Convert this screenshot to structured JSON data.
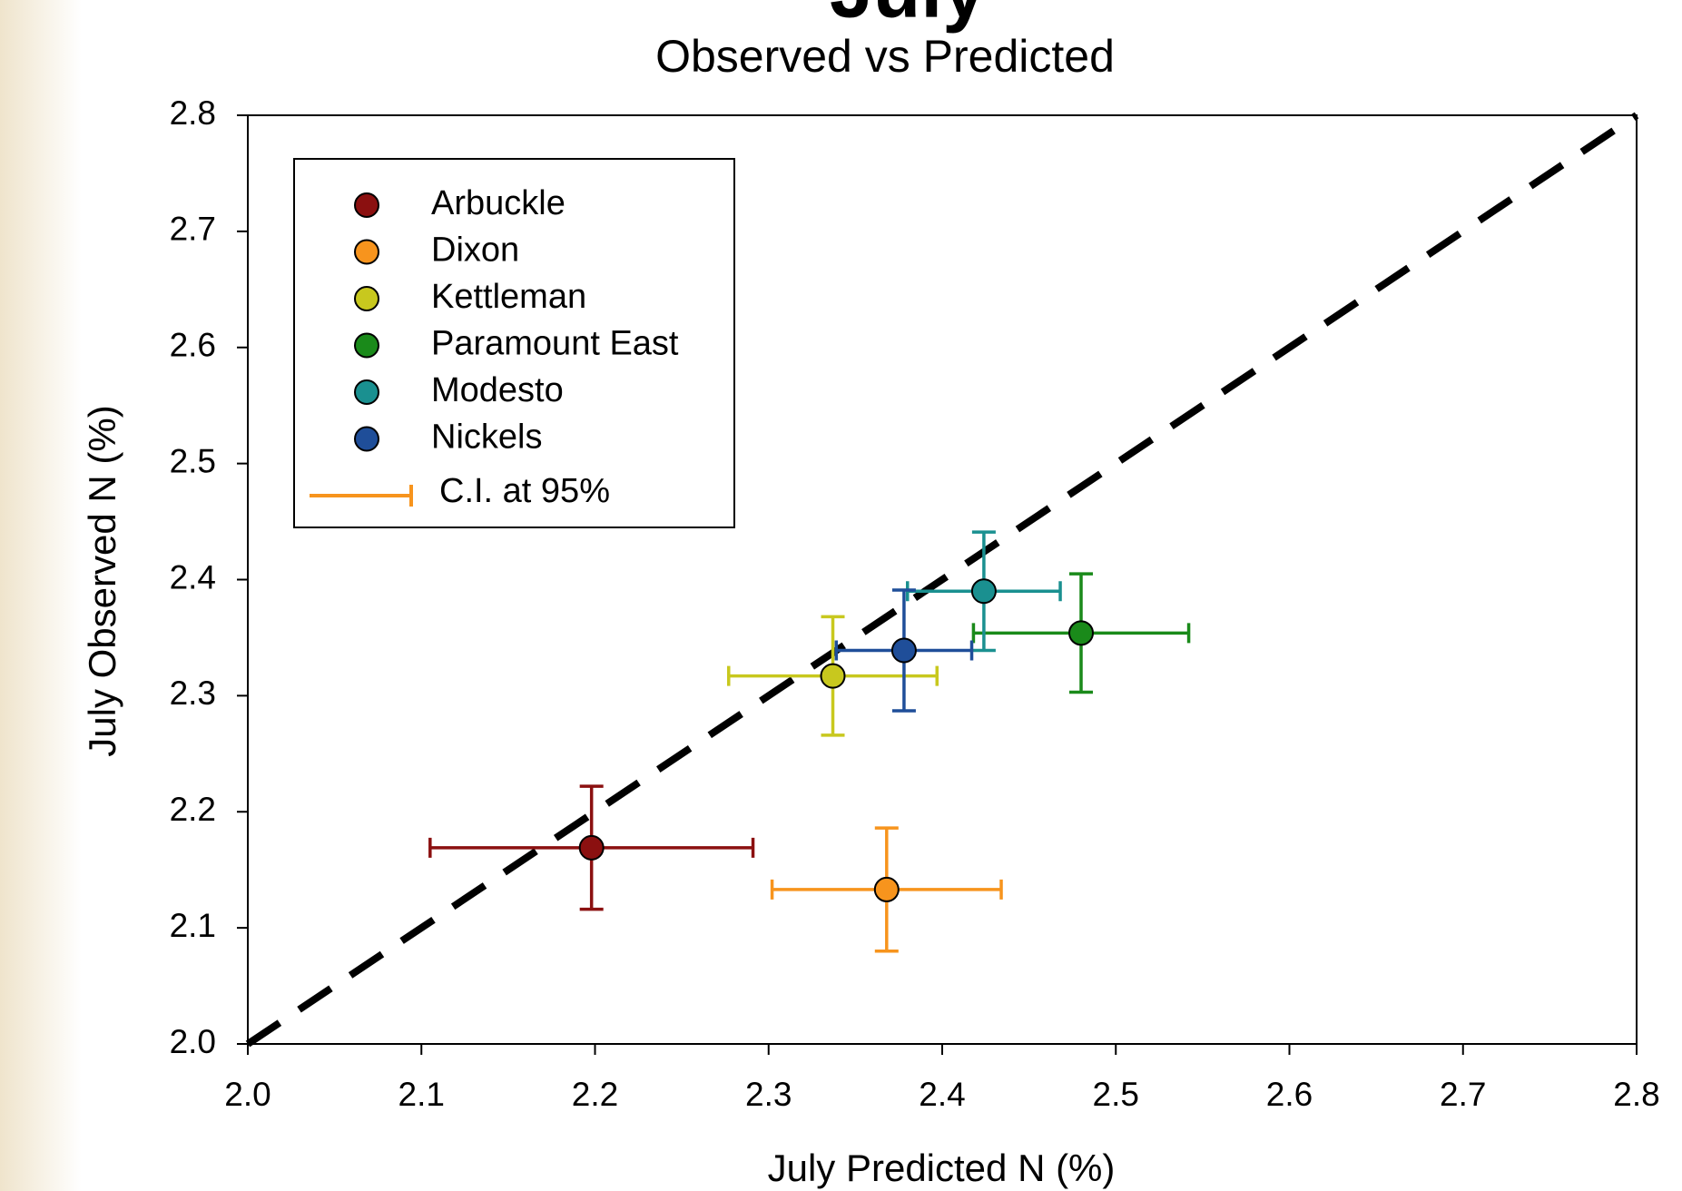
{
  "chart_data": {
    "type": "scatter",
    "title": "July",
    "subtitle": "Observed vs Predicted",
    "x_label": "July Predicted N (%)",
    "y_label": "July Observed N (%)",
    "xlim": [
      2.0,
      2.8
    ],
    "ylim": [
      2.0,
      2.8
    ],
    "xticks": [
      {
        "value": 2.0,
        "label": "2.0"
      },
      2.1,
      2.2,
      2.3,
      2.4,
      2.5,
      2.6,
      2.7,
      2.8
    ],
    "yticks": [
      {
        "value": 2.0,
        "label": "2.0"
      },
      2.1,
      2.2,
      2.3,
      2.4,
      2.5,
      2.6,
      2.7,
      2.8
    ],
    "grid": false,
    "legend": "upper left",
    "ci_label": "C.I. at 95%",
    "ci_color": "#f7941d",
    "reference_line": {
      "x": [
        2.0,
        2.8
      ],
      "y": [
        2.0,
        2.8
      ],
      "color": "#000000"
    },
    "series": [
      {
        "name": "Arbuckle",
        "color": "#8b1010",
        "x": [
          2.198
        ],
        "y": [
          2.169
        ],
        "xerr": [
          0.093
        ],
        "yerr": [
          0.053
        ]
      },
      {
        "name": "Dixon",
        "color": "#f7941d",
        "x": [
          2.368
        ],
        "y": [
          2.133
        ],
        "xerr": [
          0.066
        ],
        "yerr": [
          0.053
        ]
      },
      {
        "name": "Kettleman",
        "color": "#c8c81e",
        "x": [
          2.337
        ],
        "y": [
          2.317
        ],
        "xerr": [
          0.06
        ],
        "yerr": [
          0.051
        ]
      },
      {
        "name": "Paramount East",
        "color": "#1a8a1a",
        "x": [
          2.48
        ],
        "y": [
          2.354
        ],
        "xerr": [
          0.062
        ],
        "yerr": [
          0.051
        ]
      },
      {
        "name": "Modesto",
        "color": "#1a9090",
        "x": [
          2.424
        ],
        "y": [
          2.39
        ],
        "xerr": [
          0.044
        ],
        "yerr": [
          0.051
        ]
      },
      {
        "name": "Nickels",
        "color": "#1f4e99",
        "x": [
          2.378
        ],
        "y": [
          2.339
        ],
        "xerr": [
          0.039
        ],
        "yerr": [
          0.052
        ]
      }
    ]
  }
}
